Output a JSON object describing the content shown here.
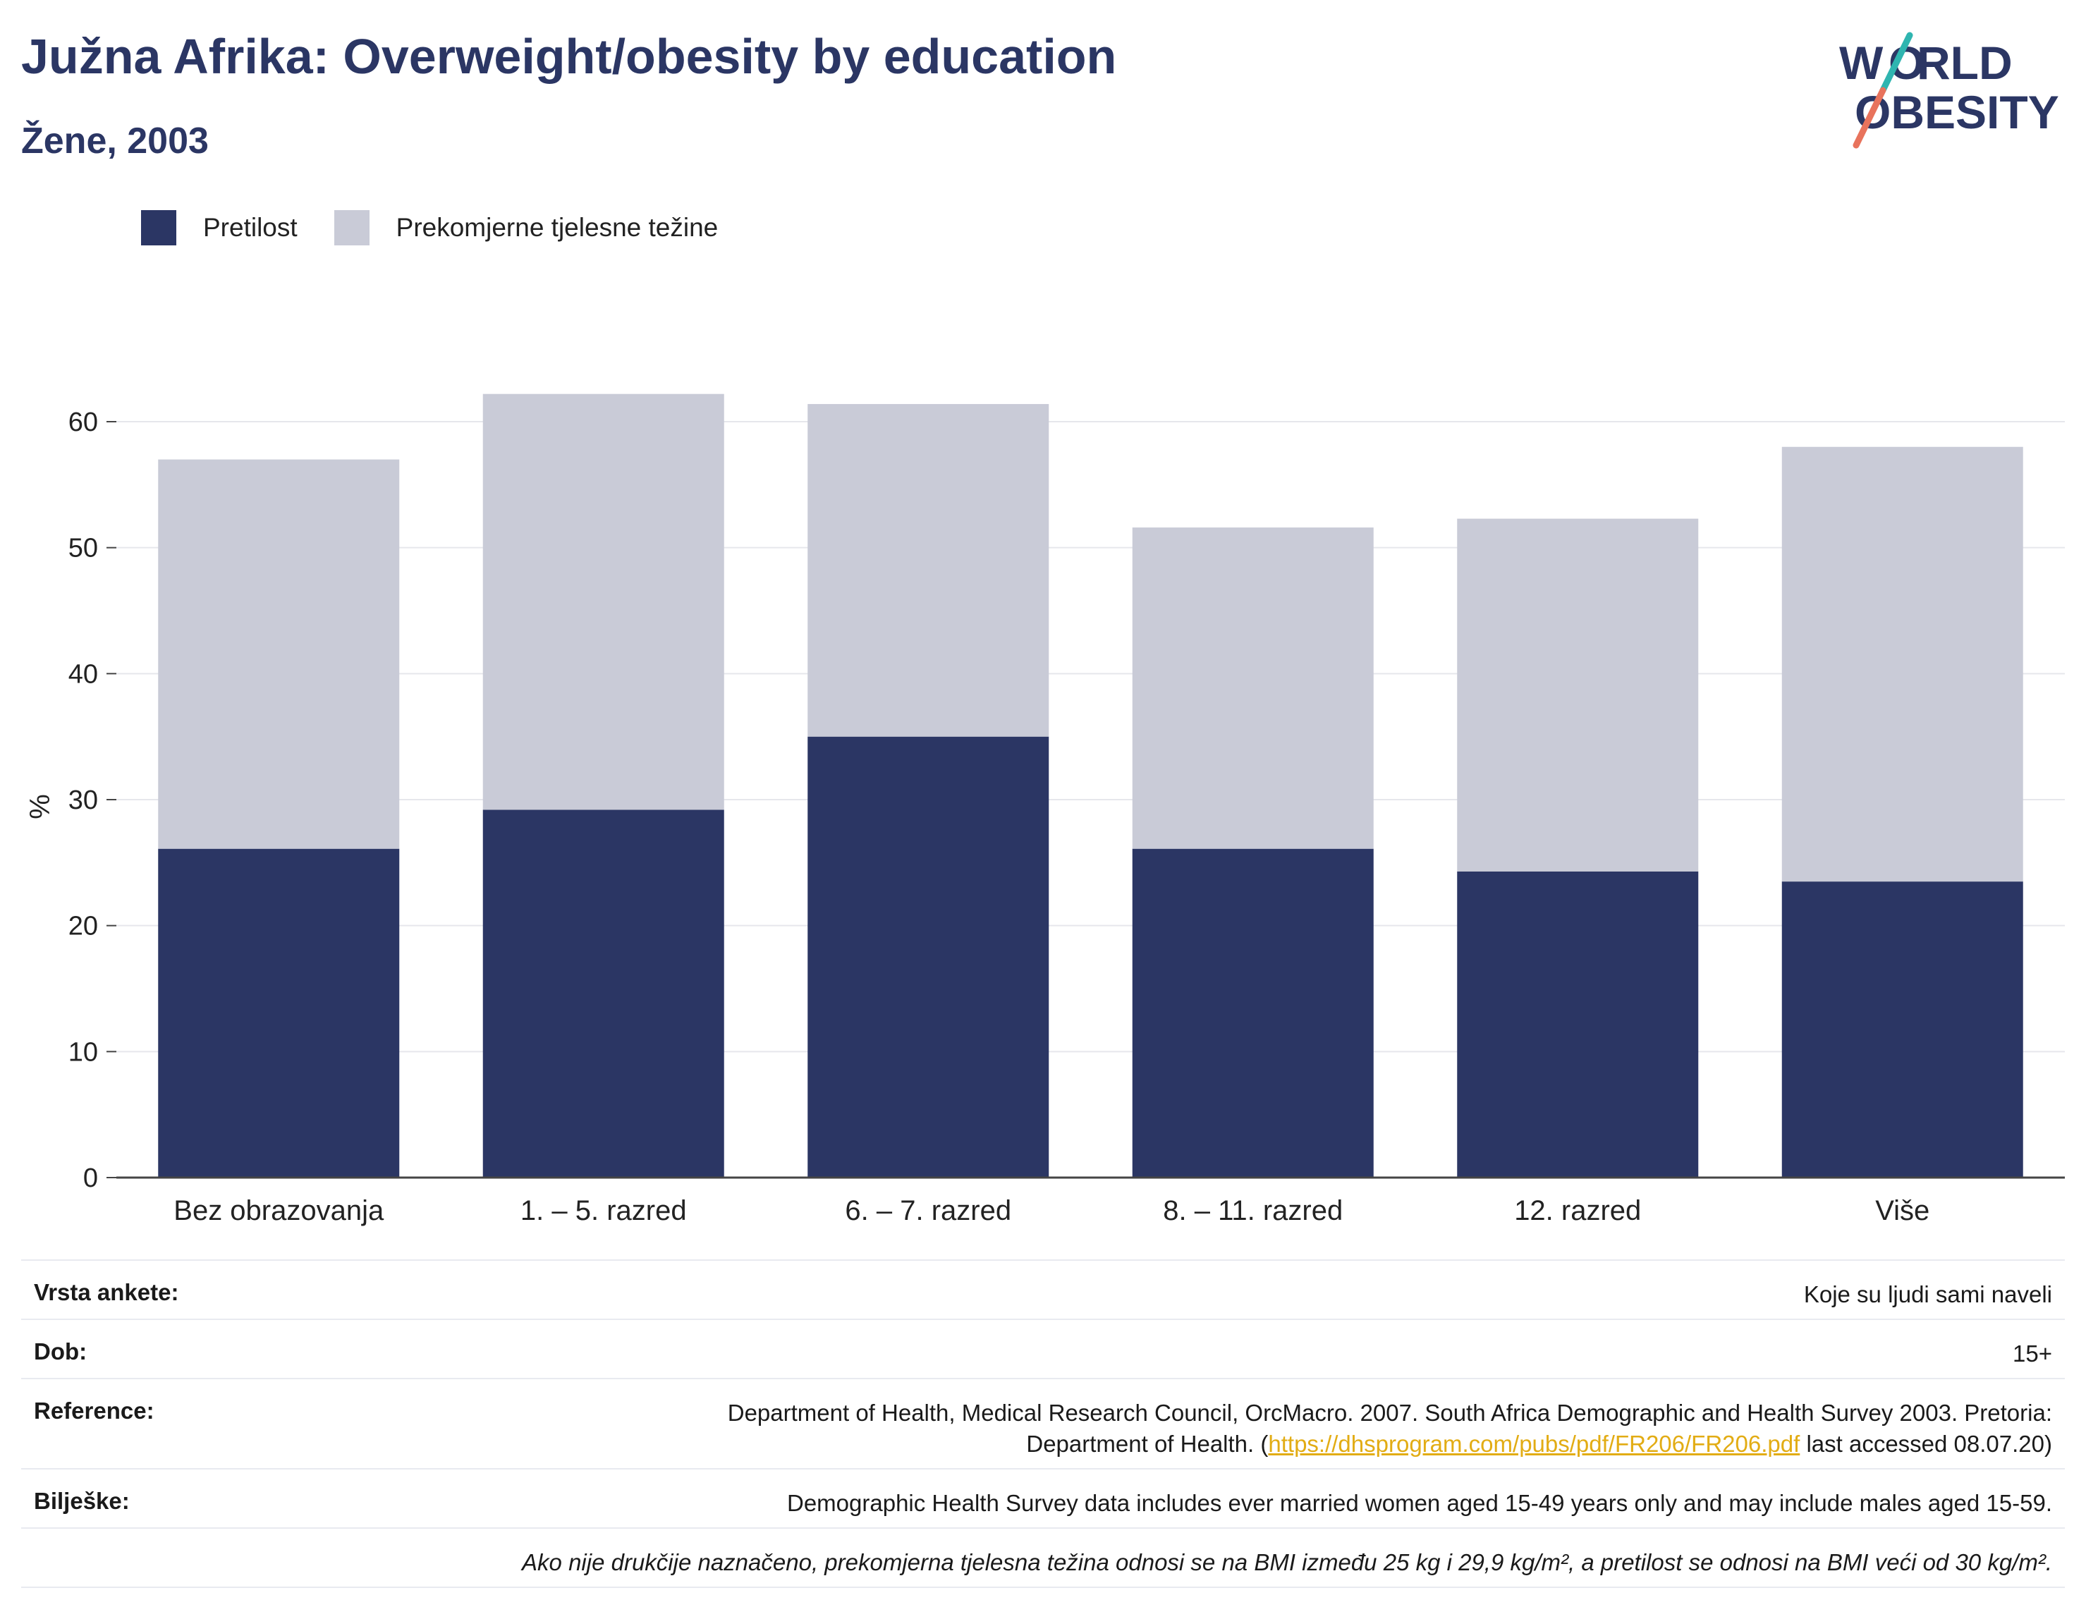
{
  "header": {
    "title": "Južna Afrika: Overweight/obesity by education",
    "subtitle": "Žene, 2003"
  },
  "logo": {
    "line1": "WORLD",
    "line2": "OBESITY",
    "accent_teal": "#2fb5b0",
    "accent_coral": "#e8735c"
  },
  "colors": {
    "obesity": "#2b3664",
    "overweight": "#c9cbd7",
    "text_dark": "#2b3664"
  },
  "chart_data": {
    "type": "bar",
    "stacked": true,
    "categories": [
      "Bez obrazovanja",
      "1. – 5. razred",
      "6. – 7. razred",
      "8. – 11. razred",
      "12. razred",
      "Više"
    ],
    "series": [
      {
        "name": "Pretilost",
        "values": [
          26.1,
          29.2,
          35.0,
          26.1,
          24.3,
          23.5
        ]
      },
      {
        "name": "Prekomjerne tjelesne težine",
        "values": [
          30.9,
          33.0,
          26.4,
          25.5,
          28.0,
          34.5
        ]
      }
    ],
    "ylabel": "%",
    "ylim": [
      0,
      60
    ],
    "yticks": [
      0,
      10,
      20,
      30,
      40,
      50,
      60
    ],
    "grid": true,
    "legend_position": "top-left"
  },
  "info": {
    "survey_label": "Vrsta ankete:",
    "survey_value": "Koje su ljudi sami naveli",
    "age_label": "Dob:",
    "age_value": "15+",
    "reference_label": "Reference:",
    "reference_text_1": "Department of Health, Medical Research Council, OrcMacro. 2007. South Africa Demographic and Health Survey 2003. Pretoria:",
    "reference_text_2": "Department of Health. (",
    "reference_link": "https://dhsprogram.com/pubs/pdf/FR206/FR206.pdf",
    "reference_text_3": " last accessed 08.07.20)",
    "notes_label": "Bilješke:",
    "notes_value": "Demographic Health Survey data includes ever married women aged 15-49 years only and may include males aged 15-59.",
    "definition_note": "Ako nije drukčije naznačeno, prekomjerna tjelesna težina odnosi se na BMI između 25 kg i 29,9 kg/m², a pretilost se odnosi na BMI veći od 30 kg/m²."
  }
}
